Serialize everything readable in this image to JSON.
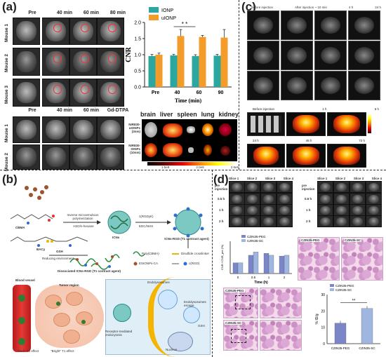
{
  "panels": {
    "a": "(a)",
    "b": "(b)",
    "c": "(c)",
    "d": "(d)"
  },
  "panel_a": {
    "time_headers_top": [
      "Pre",
      "40 min",
      "60 min",
      "80 min"
    ],
    "mouse_labels_top": [
      "Mouse 1",
      "Mouse 2",
      "Mouse 3"
    ],
    "time_headers_bottom": [
      "Pre",
      "40 min",
      "60 min",
      "Gd-DTPA"
    ],
    "mouse_labels_bottom": [
      "Mouse 1",
      "Mouse 2"
    ],
    "organ_labels": [
      "brain",
      "liver",
      "spleen",
      "lung",
      "kidney"
    ],
    "row_labels": [
      "NIR830-uIONPs (3nm)",
      "NIR830-IONPs (10nm)"
    ],
    "colorbar_ticks": [
      "1.5e9",
      "2.0e9",
      "2.5e9"
    ]
  },
  "chart_data": {
    "type": "bar",
    "categories": [
      "Pre",
      "40",
      "60",
      "90"
    ],
    "series": [
      {
        "name": "IONP",
        "values": [
          0.96,
          0.98,
          0.96,
          0.97
        ],
        "color": "#2ca7a0"
      },
      {
        "name": "uIONP",
        "values": [
          1.0,
          1.58,
          1.55,
          1.53
        ],
        "color": "#f39c2a"
      }
    ],
    "errors_uionp": [
      0.05,
      0.2,
      0.05,
      0.25
    ],
    "errors_ionp": [
      0.05,
      0.03,
      0.04,
      0.04
    ],
    "xlabel": "Time (min)",
    "ylabel": "CNR",
    "ylim": [
      0.0,
      2.0
    ],
    "yticks": [
      "0.0",
      "0.5",
      "1.0",
      "1.5",
      "2.0"
    ],
    "significance": "* *",
    "legend_position": "top-left",
    "grid": false
  },
  "panel_b": {
    "bma_label": "CBMA",
    "bacy_label": "BACy",
    "step1": "Inverse microemulsion polymerization",
    "step1_sub": "H2O/n-hexane",
    "icns": "ICNs",
    "step2": "c(RGDyK)",
    "step2_sub": "EDC/NHS",
    "product": "ICNs-RGD (T1 contrast agent)",
    "gsh": "GSH",
    "reducing": "Reducing environment",
    "dissociated": "Dissociated ICNs-RGD (T1 contrast agent)",
    "legend": [
      "Poly(CBMA)",
      "Disulfide crosslinker",
      "ESIONPs-CA",
      "c(RGD)"
    ],
    "blood_vessel": "Blood vessel",
    "tumor_region": "Tumor region",
    "dark": "\"Dark\" T2 effect",
    "bright": "\"Bright\" T1 effect",
    "endo": "Endolysosomes",
    "endo2": "Endolysosomes escape",
    "rme": "Receptor-mediated endocytosis",
    "gsh2": "GSH",
    "nucleus": "Nucleus"
  },
  "panel_c": {
    "headers": [
      "Before injection",
      "After injection ~ 10 min",
      "4 h",
      "24 h"
    ],
    "fluor_headers_top": [
      "Before injection",
      "1 h",
      "6 h"
    ],
    "fluor_headers_bottom": [
      "24 h",
      "48 h",
      "72 h"
    ]
  },
  "panel_d": {
    "slice_headers": [
      "Slice 1",
      "Slice 2",
      "Slice 3",
      "Slice 4"
    ],
    "row_times": [
      "pre injection",
      "0.5 h",
      "1 h",
      "2 h"
    ],
    "bar_left": {
      "legend": [
        "CZIN35-PEG",
        "CZIN35-SC"
      ],
      "xlabel": "Time (h)",
      "ylabel": "CNR / CNR_pre (%)",
      "categories": [
        "0",
        "0.5",
        "1",
        "2"
      ]
    },
    "histo_labels": [
      "CZIN35-PEG",
      "CZIN35-SC",
      "CZIN35-PEG",
      "CZIN35-SC"
    ],
    "bar_right": {
      "legend": [
        "CZIN35-PEG",
        "CZIN35-SC"
      ],
      "ylabel": "% ID/g",
      "categories": [
        "CZIN35-PEG",
        "CZIN35-SC"
      ],
      "values": [
        12.5,
        21.5
      ],
      "significance": "**"
    }
  }
}
